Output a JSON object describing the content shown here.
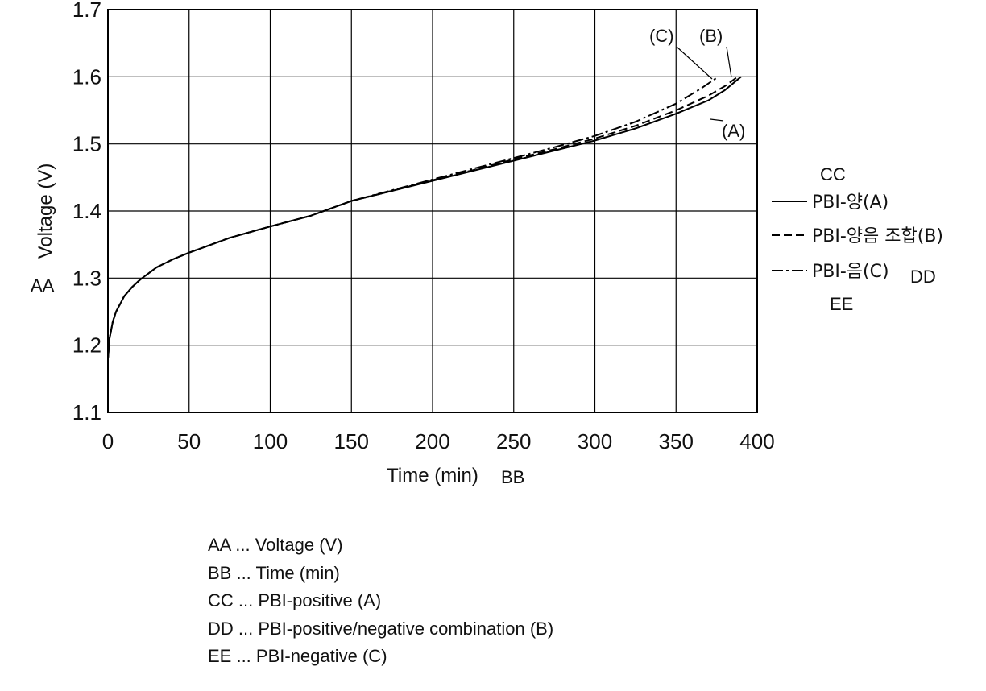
{
  "chart_data": {
    "type": "line",
    "title": "",
    "xlabel": "Time (min)",
    "ylabel": "Voltage (V)",
    "xlim": [
      0,
      400
    ],
    "ylim": [
      1.1,
      1.7
    ],
    "x_ticks": [
      "0",
      "50",
      "100",
      "150",
      "200",
      "250",
      "300",
      "350",
      "400"
    ],
    "y_ticks": [
      "1.1",
      "1.2",
      "1.3",
      "1.4",
      "1.5",
      "1.6",
      "1.7"
    ],
    "grid": true,
    "axis_codes": {
      "y": "AA",
      "x": "BB"
    },
    "legend": {
      "placement": "right",
      "title_code": "CC",
      "side_code": "DD",
      "bottom_code": "EE",
      "entries": [
        {
          "label": "PBI-양(A)",
          "style": "solid"
        },
        {
          "label": "PBI-양음 조합(B)",
          "style": "dashed"
        },
        {
          "label": "PBI-음(C)",
          "style": "dash-dot"
        }
      ]
    },
    "series": [
      {
        "name": "PBI-양(A)",
        "annotation": "(A)",
        "points": [
          [
            0,
            1.18
          ],
          [
            1,
            1.21
          ],
          [
            3,
            1.235
          ],
          [
            5,
            1.25
          ],
          [
            10,
            1.273
          ],
          [
            15,
            1.287
          ],
          [
            20,
            1.298
          ],
          [
            30,
            1.316
          ],
          [
            40,
            1.328
          ],
          [
            50,
            1.338
          ],
          [
            75,
            1.36
          ],
          [
            100,
            1.377
          ],
          [
            125,
            1.393
          ],
          [
            150,
            1.415
          ],
          [
            175,
            1.43
          ],
          [
            200,
            1.445
          ],
          [
            225,
            1.46
          ],
          [
            250,
            1.475
          ],
          [
            275,
            1.49
          ],
          [
            300,
            1.505
          ],
          [
            325,
            1.523
          ],
          [
            350,
            1.545
          ],
          [
            370,
            1.565
          ],
          [
            380,
            1.58
          ],
          [
            390,
            1.6
          ]
        ]
      },
      {
        "name": "PBI-양음 조합(B)",
        "annotation": "(B)",
        "points": [
          [
            0,
            1.18
          ],
          [
            1,
            1.21
          ],
          [
            3,
            1.235
          ],
          [
            5,
            1.25
          ],
          [
            10,
            1.273
          ],
          [
            15,
            1.287
          ],
          [
            20,
            1.298
          ],
          [
            30,
            1.316
          ],
          [
            40,
            1.328
          ],
          [
            50,
            1.338
          ],
          [
            75,
            1.36
          ],
          [
            100,
            1.377
          ],
          [
            125,
            1.393
          ],
          [
            150,
            1.415
          ],
          [
            175,
            1.43
          ],
          [
            200,
            1.446
          ],
          [
            225,
            1.461
          ],
          [
            250,
            1.477
          ],
          [
            275,
            1.492
          ],
          [
            300,
            1.508
          ],
          [
            325,
            1.527
          ],
          [
            350,
            1.55
          ],
          [
            370,
            1.572
          ],
          [
            380,
            1.586
          ],
          [
            388,
            1.6
          ]
        ]
      },
      {
        "name": "PBI-음(C)",
        "annotation": "(C)",
        "points": [
          [
            0,
            1.18
          ],
          [
            1,
            1.21
          ],
          [
            3,
            1.235
          ],
          [
            5,
            1.25
          ],
          [
            10,
            1.273
          ],
          [
            15,
            1.287
          ],
          [
            20,
            1.298
          ],
          [
            30,
            1.316
          ],
          [
            40,
            1.328
          ],
          [
            50,
            1.338
          ],
          [
            75,
            1.36
          ],
          [
            100,
            1.377
          ],
          [
            125,
            1.393
          ],
          [
            150,
            1.415
          ],
          [
            175,
            1.431
          ],
          [
            200,
            1.447
          ],
          [
            225,
            1.463
          ],
          [
            250,
            1.479
          ],
          [
            275,
            1.495
          ],
          [
            300,
            1.512
          ],
          [
            325,
            1.533
          ],
          [
            350,
            1.56
          ],
          [
            365,
            1.582
          ],
          [
            376,
            1.6
          ]
        ]
      }
    ]
  },
  "notes": [
    "AA ... Voltage (V)",
    "BB ... Time (min)",
    "CC ... PBI-positive (A)",
    "DD ... PBI-positive/negative combination (B)",
    "EE ... PBI-negative (C)"
  ]
}
